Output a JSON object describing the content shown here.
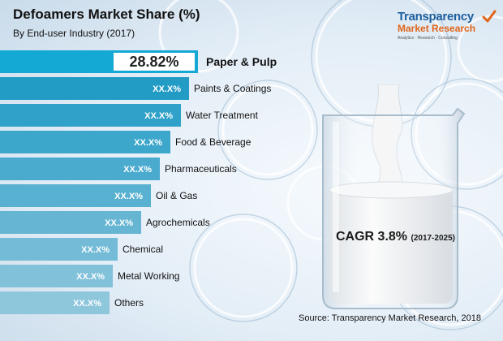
{
  "chart_data": {
    "type": "bar",
    "orientation": "horizontal",
    "title": "Defoamers Market Share (%)",
    "subtitle": "By End-user Industry (2017)",
    "categories": [
      "Paper & Pulp",
      "Paints & Coatings",
      "Water Treatment",
      "Food & Beverage",
      "Pharmaceuticals",
      "Oil & Gas",
      "Agrochemicals",
      "Chemical",
      "Metal Working",
      "Others"
    ],
    "value_labels": [
      "28.82%",
      "XX.X%",
      "XX.X%",
      "XX.X%",
      "XX.X%",
      "XX.X%",
      "XX.X%",
      "XX.X%",
      "XX.X%",
      "XX.X%"
    ],
    "values": [
      28.82,
      27.5,
      26.3,
      24.8,
      23.3,
      22.0,
      20.6,
      17.1,
      16.4,
      15.9
    ],
    "highlight": "Paper & Pulp",
    "colors": {
      "bar_top": "#1596c2",
      "bar_bottom": "#8ec6dc",
      "bar_highlight": "#14a8d4",
      "value_text": "#ffffff",
      "value_text_highlight": "#222222"
    }
  },
  "annotation": {
    "cagr_label": "CAGR 3.8%",
    "cagr_period": "(2017-2025)"
  },
  "logo": {
    "line1": "Transparency",
    "line2": "Market Research",
    "tagline": "Analytics · Research · Consulting"
  },
  "source": "Source: Transparency Market Research, 2018"
}
